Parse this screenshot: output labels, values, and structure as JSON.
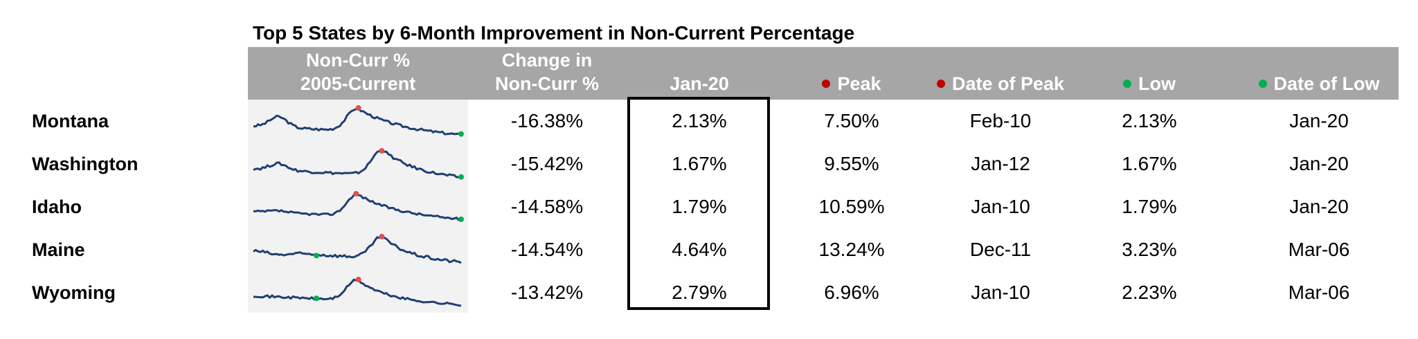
{
  "title": "Top 5 States by 6-Month Improvement in Non-Current Percentage",
  "headers": {
    "spark_line1": "Non-Curr %",
    "spark_line2": "2005-Current",
    "change_line1": "Change in",
    "change_line2": "Non-Curr %",
    "current": "Jan-20",
    "peak": "Peak",
    "date_of_peak": "Date of Peak",
    "low": "Low",
    "date_of_low": "Date of Low"
  },
  "colors": {
    "header_bg": "#a6a6a6",
    "spark_bg": "#f2f2f2",
    "spark_line": "#1f3f73",
    "peak_marker": "#e05050",
    "low_marker": "#00b050"
  },
  "rows": [
    {
      "state": "Montana",
      "change": "-16.38%",
      "current": "2.13%",
      "peak": "7.50%",
      "date_of_peak": "Feb-10",
      "low": "2.13%",
      "date_of_low": "Jan-20"
    },
    {
      "state": "Washington",
      "change": "-15.42%",
      "current": "1.67%",
      "peak": "9.55%",
      "date_of_peak": "Jan-12",
      "low": "1.67%",
      "date_of_low": "Jan-20"
    },
    {
      "state": "Idaho",
      "change": "-14.58%",
      "current": "1.79%",
      "peak": "10.59%",
      "date_of_peak": "Jan-10",
      "low": "1.79%",
      "date_of_low": "Jan-20"
    },
    {
      "state": "Maine",
      "change": "-14.54%",
      "current": "4.64%",
      "peak": "13.24%",
      "date_of_peak": "Dec-11",
      "low": "3.23%",
      "date_of_low": "Mar-06"
    },
    {
      "state": "Wyoming",
      "change": "-13.42%",
      "current": "2.79%",
      "peak": "6.96%",
      "date_of_peak": "Jan-10",
      "low": "2.23%",
      "date_of_low": "Mar-06"
    }
  ]
}
